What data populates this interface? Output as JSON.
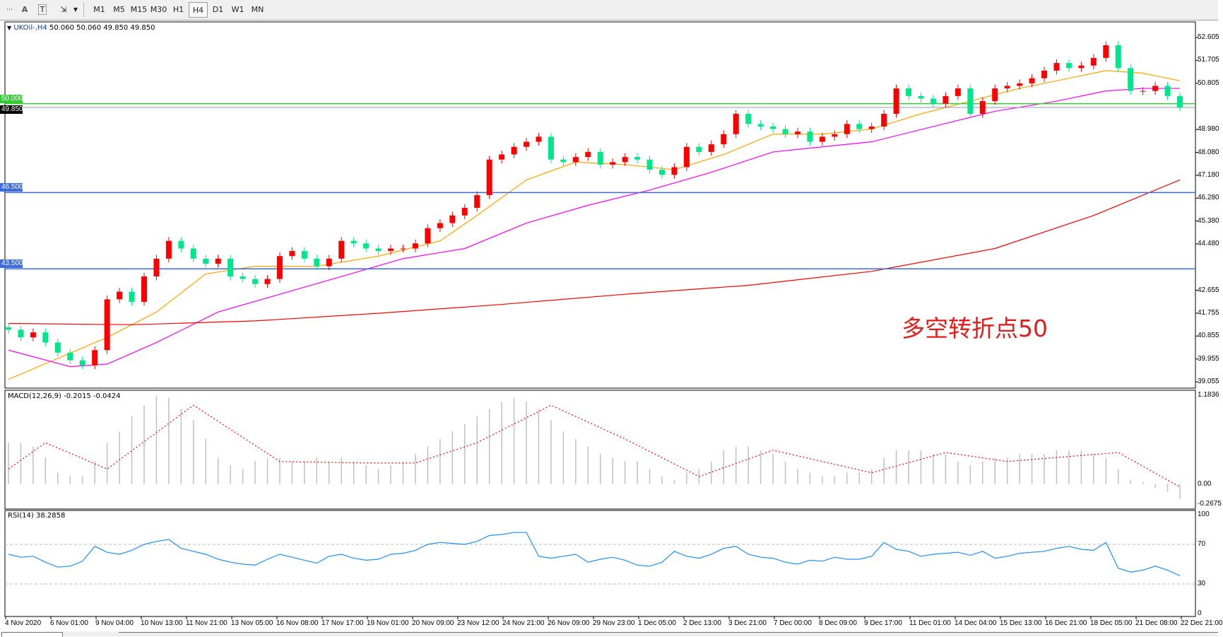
{
  "toolbar": {
    "icons": [
      "grid-icon",
      "text-a-icon",
      "text-box-icon",
      "arrows-icon",
      "dropdown-arrow-icon"
    ],
    "text_a": "A",
    "text_t": "T",
    "timeframes": [
      "M1",
      "M5",
      "M15",
      "M30",
      "H1",
      "H4",
      "D1",
      "W1",
      "MN"
    ],
    "active_timeframe": "H4"
  },
  "chart_header": {
    "symbol": "UKOil-,H4",
    "ohlc": "50.060 50.060 49.850 49.850"
  },
  "annotation": "多空转折点50",
  "colors": {
    "bull": "#ff0000",
    "bear": "#00e68a",
    "ma_fast": "#ffa500",
    "ma_mid": "#ff00ff",
    "ma_slow": "#ff0000",
    "level_green": "#32cd32",
    "level_blue": "#3a6be0",
    "price_line": "#8899aa",
    "macd_hist": "#c0c0c0",
    "macd_signal": "#ff0000",
    "rsi": "#1e90ff"
  },
  "chart_data": [
    {
      "type": "candlestick",
      "title": "UKOil-,H4",
      "ylim": [
        39.055,
        52.605
      ],
      "y_ticks": [
        "52.605",
        "51.705",
        "50.805",
        "48.980",
        "48.080",
        "47.180",
        "46.280",
        "45.380",
        "44.480",
        "42.655",
        "41.755",
        "40.855",
        "39.955",
        "39.055"
      ],
      "x_tick_labels": [
        "4 Nov 2020",
        "6 Nov 01:00",
        "9 Nov 04:00",
        "10 Nov 13:00",
        "11 Nov 21:00",
        "13 Nov 05:00",
        "16 Nov 08:00",
        "17 Nov 17:00",
        "19 Nov 01:00",
        "20 Nov 09:00",
        "23 Nov 12:00",
        "24 Nov 21:00",
        "26 Nov 09:00",
        "29 Nov 23:00",
        "1 Dec 05:00",
        "2 Dec 13:00",
        "3 Dec 21:00",
        "7 Dec 00:00",
        "8 Dec 09:00",
        "9 Dec 17:00",
        "11 Dec 01:00",
        "14 Dec 04:00",
        "15 Dec 13:00",
        "16 Dec 21:00",
        "18 Dec 05:00",
        "21 Dec 08:00",
        "22 Dec 21:00"
      ],
      "close": [
        41.1,
        40.8,
        41.0,
        40.6,
        40.2,
        39.9,
        39.7,
        40.3,
        42.3,
        42.6,
        42.2,
        43.2,
        43.9,
        44.6,
        44.3,
        43.9,
        43.7,
        43.9,
        43.2,
        43.1,
        42.9,
        43.1,
        44.0,
        44.2,
        43.9,
        43.6,
        43.9,
        44.6,
        44.5,
        44.3,
        44.2,
        44.3,
        44.3,
        44.5,
        45.1,
        45.3,
        45.6,
        45.9,
        46.4,
        47.8,
        48.0,
        48.3,
        48.5,
        48.7,
        47.8,
        47.7,
        47.9,
        48.1,
        47.6,
        47.7,
        47.9,
        47.8,
        47.4,
        47.2,
        47.5,
        48.3,
        48.1,
        48.4,
        48.8,
        49.6,
        49.2,
        49.1,
        49.0,
        48.8,
        48.9,
        48.5,
        48.7,
        48.8,
        49.2,
        49.0,
        49.1,
        49.6,
        50.6,
        50.3,
        50.2,
        50.0,
        50.3,
        50.6,
        49.6,
        50.1,
        50.6,
        50.7,
        50.8,
        51.0,
        51.3,
        51.6,
        51.4,
        51.5,
        51.8,
        52.3,
        51.4,
        50.5,
        50.5,
        50.7,
        50.3,
        49.85
      ],
      "moving_averages": [
        {
          "color_key": "ma_fast",
          "points": [
            [
              0,
              39.15
            ],
            [
              8,
              40.8
            ],
            [
              12,
              41.8
            ],
            [
              16,
              43.3
            ],
            [
              20,
              43.6
            ],
            [
              25,
              43.6
            ],
            [
              30,
              44.0
            ],
            [
              35,
              44.6
            ],
            [
              38,
              45.6
            ],
            [
              42,
              47.0
            ],
            [
              46,
              47.7
            ],
            [
              50,
              47.6
            ],
            [
              54,
              47.4
            ],
            [
              58,
              48.0
            ],
            [
              62,
              48.8
            ],
            [
              66,
              48.8
            ],
            [
              70,
              49.0
            ],
            [
              74,
              49.6
            ],
            [
              78,
              50.1
            ],
            [
              82,
              50.6
            ],
            [
              86,
              51.0
            ],
            [
              89,
              51.3
            ],
            [
              92,
              51.2
            ],
            [
              95,
              50.9
            ]
          ]
        },
        {
          "color_key": "ma_mid",
          "points": [
            [
              0,
              40.3
            ],
            [
              5,
              39.65
            ],
            [
              8,
              39.75
            ],
            [
              12,
              40.6
            ],
            [
              17,
              41.8
            ],
            [
              22,
              42.5
            ],
            [
              27,
              43.2
            ],
            [
              32,
              43.9
            ],
            [
              37,
              44.3
            ],
            [
              42,
              45.3
            ],
            [
              47,
              46.0
            ],
            [
              52,
              46.6
            ],
            [
              57,
              47.3
            ],
            [
              62,
              48.1
            ],
            [
              66,
              48.3
            ],
            [
              70,
              48.5
            ],
            [
              75,
              49.1
            ],
            [
              80,
              49.7
            ],
            [
              85,
              50.1
            ],
            [
              89,
              50.5
            ],
            [
              92,
              50.6
            ],
            [
              95,
              50.6
            ]
          ]
        },
        {
          "color_key": "ma_slow",
          "points": [
            [
              0,
              41.35
            ],
            [
              10,
              41.3
            ],
            [
              20,
              41.45
            ],
            [
              30,
              41.75
            ],
            [
              40,
              42.1
            ],
            [
              50,
              42.5
            ],
            [
              60,
              42.85
            ],
            [
              70,
              43.4
            ],
            [
              80,
              44.3
            ],
            [
              88,
              45.6
            ],
            [
              92,
              46.4
            ],
            [
              95,
              47.0
            ]
          ]
        }
      ],
      "levels": [
        {
          "price": 50.0,
          "label": "50.000",
          "color_key": "level_green"
        },
        {
          "price": 46.5,
          "label": "46.500",
          "color_key": "level_blue"
        },
        {
          "price": 43.5,
          "label": "43.500",
          "color_key": "level_blue"
        }
      ],
      "current_price": {
        "price": 49.85,
        "label": "49.850"
      }
    },
    {
      "type": "bar",
      "title": "MACD(12,26,9) -0.2015 -0.0424",
      "ylim": [
        -0.2675,
        1.1836
      ],
      "y_ticks": [
        "1.1836",
        "0.00",
        "-0.2675"
      ],
      "histogram": [
        0.55,
        0.55,
        0.5,
        0.35,
        0.15,
        0.1,
        0.1,
        0.3,
        0.55,
        0.7,
        0.9,
        1.05,
        1.18,
        1.15,
        1.0,
        0.85,
        0.6,
        0.35,
        0.25,
        0.2,
        0.3,
        0.35,
        0.35,
        0.3,
        0.3,
        0.35,
        0.3,
        0.35,
        0.3,
        0.25,
        0.2,
        0.25,
        0.3,
        0.4,
        0.5,
        0.6,
        0.7,
        0.8,
        0.9,
        1.0,
        1.1,
        1.15,
        1.1,
        1.0,
        0.85,
        0.7,
        0.6,
        0.5,
        0.4,
        0.35,
        0.3,
        0.3,
        0.2,
        0.1,
        0.05,
        0.15,
        0.2,
        0.3,
        0.45,
        0.5,
        0.5,
        0.45,
        0.4,
        0.3,
        0.2,
        0.15,
        0.1,
        0.1,
        0.15,
        0.15,
        0.2,
        0.35,
        0.45,
        0.45,
        0.45,
        0.4,
        0.4,
        0.3,
        0.25,
        0.3,
        0.35,
        0.35,
        0.4,
        0.4,
        0.4,
        0.45,
        0.45,
        0.45,
        0.4,
        0.35,
        0.2,
        0.05,
        0.03,
        -0.05,
        -0.1,
        -0.2015
      ],
      "signal": [
        [
          0,
          0.2
        ],
        [
          3,
          0.55
        ],
        [
          8,
          0.2
        ],
        [
          15,
          1.05
        ],
        [
          22,
          0.3
        ],
        [
          29,
          0.28
        ],
        [
          33,
          0.28
        ],
        [
          38,
          0.55
        ],
        [
          44,
          1.05
        ],
        [
          50,
          0.6
        ],
        [
          56,
          0.1
        ],
        [
          62,
          0.45
        ],
        [
          70,
          0.15
        ],
        [
          76,
          0.42
        ],
        [
          81,
          0.3
        ],
        [
          90,
          0.42
        ],
        [
          95,
          -0.04
        ]
      ]
    },
    {
      "type": "line",
      "title": "RSI(14) 38.2858",
      "ylim": [
        0,
        100
      ],
      "y_ticks": [
        "100",
        "70",
        "30",
        "0"
      ],
      "levels": [
        70,
        30
      ],
      "values": [
        60,
        57,
        58,
        52,
        47,
        48,
        53,
        68,
        62,
        60,
        64,
        70,
        73,
        75,
        66,
        63,
        60,
        55,
        52,
        50,
        49,
        55,
        60,
        57,
        54,
        51,
        58,
        60,
        56,
        54,
        55,
        60,
        61,
        64,
        70,
        72,
        71,
        70,
        73,
        79,
        80,
        82,
        82,
        58,
        56,
        58,
        60,
        52,
        55,
        57,
        54,
        49,
        48,
        52,
        63,
        58,
        56,
        60,
        66,
        68,
        60,
        57,
        56,
        52,
        50,
        54,
        53,
        57,
        55,
        55,
        58,
        72,
        65,
        63,
        58,
        60,
        61,
        62,
        59,
        63,
        56,
        58,
        61,
        62,
        63,
        66,
        68,
        65,
        64,
        72,
        46,
        42,
        44,
        48,
        44,
        38.3
      ]
    }
  ]
}
